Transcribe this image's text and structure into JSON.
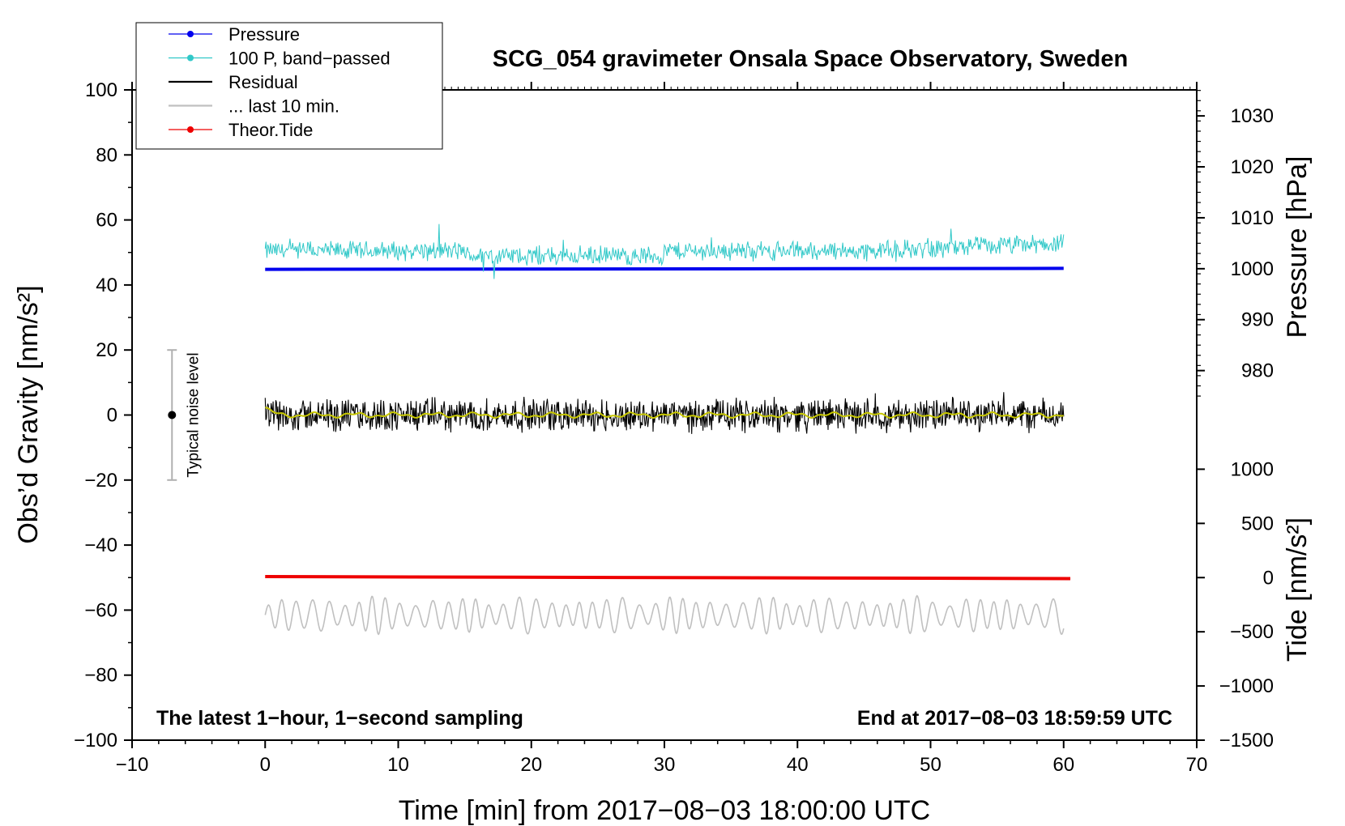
{
  "chart_data": {
    "type": "line",
    "title": "SCG_054 gravimeter Onsala Space Observatory, Sweden",
    "xlabel": "Time [min] from 2017−08−03 18:00:00 UTC",
    "ylabel": "Obs’d Gravity [nm/s²]",
    "xlim": [
      -10,
      70
    ],
    "ylim": [
      -100,
      100
    ],
    "x_ticks": [
      -10,
      0,
      10,
      20,
      30,
      40,
      50,
      60,
      70
    ],
    "x_tick_labels": [
      "−10",
      "0",
      "10",
      "20",
      "30",
      "40",
      "50",
      "60",
      "70"
    ],
    "y_ticks": [
      -100,
      -80,
      -60,
      -40,
      -20,
      0,
      20,
      40,
      60,
      80,
      100
    ],
    "y_tick_labels": [
      "−100",
      "−80",
      "−60",
      "−40",
      "−20",
      "0",
      "20",
      "40",
      "60",
      "80",
      "100"
    ],
    "right_axes": [
      {
        "name": "Pressure",
        "label": "Pressure [hPa]",
        "ticks": [
          980,
          990,
          1000,
          1010,
          1020,
          1030
        ],
        "tick_labels": [
          "980",
          "990",
          "1000",
          "1010",
          "1020",
          "1030"
        ],
        "maps_to_left": {
          "value_a": 1000,
          "left_a": 45,
          "value_b": 1030,
          "left_b": 92
        }
      },
      {
        "name": "Tide",
        "label": "Tide [nm/s²]",
        "ticks": [
          -1500,
          -1000,
          -500,
          0,
          500,
          1000
        ],
        "tick_labels": [
          "−1500",
          "−1000",
          "−500",
          "0",
          "500",
          "1000"
        ],
        "maps_to_left": {
          "value_a": 0,
          "left_a": -50,
          "value_b": -1500,
          "left_b": -100
        }
      }
    ],
    "series": [
      {
        "name": "Pressure",
        "color": "#0000ee",
        "kind": "line",
        "x_range": [
          0,
          60
        ],
        "left_start": 44.8,
        "left_end": 45.1,
        "pressure_hPa_start": 999.9,
        "pressure_hPa_end": 1000.1
      },
      {
        "name": "100 P, band−passed",
        "color": "#30c8c8",
        "kind": "noisy",
        "x_range": [
          0,
          60
        ],
        "left_mean": 50.5,
        "amplitude": 3.5
      },
      {
        "name": "Residual",
        "color": "#000000",
        "kind": "noisy",
        "x_range": [
          0,
          60
        ],
        "left_mean": 0,
        "amplitude": 6
      },
      {
        "name": "Residual smoothed",
        "color": "#c8c800",
        "kind": "smooth",
        "x_range": [
          0,
          60
        ],
        "left_mean": 0,
        "amplitude": 0.9
      },
      {
        "name": "... last 10 min.",
        "color": "#c0c0c0",
        "kind": "oscillating",
        "x_range": [
          0,
          60
        ],
        "left_mean": -61.5,
        "amplitude": 6
      },
      {
        "name": "Theor.Tide",
        "color": "#ee0000",
        "kind": "line",
        "x_range": [
          0,
          60.5
        ],
        "left_start": -49.7,
        "left_end": -50.3,
        "tide_nm_s2_start": 5,
        "tide_nm_s2_end": -20
      }
    ],
    "noise_bar": {
      "x": -7,
      "center": 0,
      "half_range": 20,
      "label": "Typical noise level"
    },
    "legend": {
      "placement": "top-left",
      "entries": [
        {
          "label": "Pressure",
          "color": "#0000ee",
          "marker": true
        },
        {
          "label": "100 P, band−passed",
          "color": "#30c8c8",
          "marker": true
        },
        {
          "label": "Residual",
          "color": "#000000",
          "marker": false
        },
        {
          "label": "... last 10 min.",
          "color": "#c0c0c0",
          "marker": false
        },
        {
          "label": "Theor.Tide",
          "color": "#ee0000",
          "marker": true
        }
      ]
    },
    "annotations": {
      "bottom_left": "The latest 1−hour, 1−second sampling",
      "bottom_right": "End at 2017−08−03 18:59:59 UTC"
    }
  }
}
